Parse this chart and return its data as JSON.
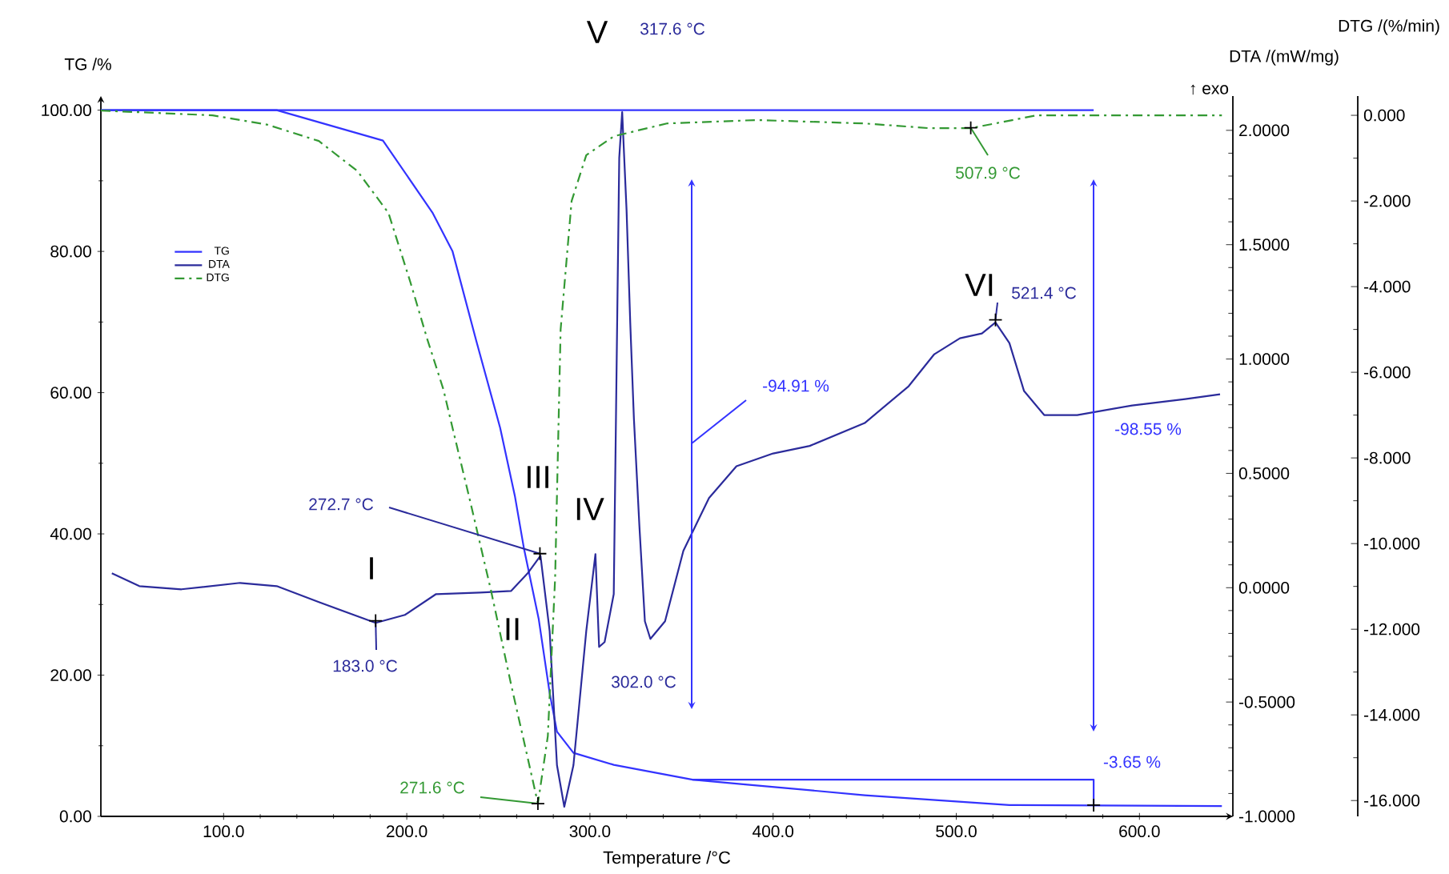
{
  "chart_data": {
    "type": "line",
    "xlabel": "Temperature /°C",
    "ylabel": "TG /%",
    "y2label": "DTA /(mW/mg)",
    "y3label": "DTG /(%/min)",
    "xlim": [
      33,
      651
    ],
    "ylim": [
      0,
      102
    ],
    "y2lim": [
      -1.0,
      2.15
    ],
    "y3lim": [
      -16.37,
      0.45
    ],
    "xticks": [
      {
        "value": 100,
        "label": "100.0"
      },
      {
        "value": 200,
        "label": "200.0"
      },
      {
        "value": 300,
        "label": "300.0"
      },
      {
        "value": 400,
        "label": "400.0"
      },
      {
        "value": 500,
        "label": "500.0"
      },
      {
        "value": 600,
        "label": "600.0"
      }
    ],
    "yticks": [
      {
        "value": 0,
        "label": "0.00"
      },
      {
        "value": 20,
        "label": "20.00"
      },
      {
        "value": 40,
        "label": "40.00"
      },
      {
        "value": 60,
        "label": "60.00"
      },
      {
        "value": 80,
        "label": "80.00"
      },
      {
        "value": 100,
        "label": "100.00"
      }
    ],
    "y2ticks": [
      {
        "value": -1,
        "label": "-1.0000"
      },
      {
        "value": -0.5,
        "label": "-0.5000"
      },
      {
        "value": 0,
        "label": "0.0000"
      },
      {
        "value": 0.5,
        "label": "0.5000"
      },
      {
        "value": 1,
        "label": "1.0000"
      },
      {
        "value": 1.5,
        "label": "1.5000"
      },
      {
        "value": 2,
        "label": "2.0000"
      }
    ],
    "y3ticks": [
      {
        "value": -16,
        "label": "-16.000"
      },
      {
        "value": -14,
        "label": "-14.000"
      },
      {
        "value": -12,
        "label": "-12.000"
      },
      {
        "value": -10,
        "label": "-10.000"
      },
      {
        "value": -8,
        "label": "-8.000"
      },
      {
        "value": -6,
        "label": "-6.000"
      },
      {
        "value": -4,
        "label": "-4.000"
      },
      {
        "value": -2,
        "label": "-2.000"
      },
      {
        "value": 0,
        "label": "0.000"
      }
    ],
    "legend": "top left",
    "series": [
      {
        "name": "TG",
        "color": "#3333ff",
        "line_style": "solid",
        "x": [
          33,
          129,
          187,
          214,
          225,
          238,
          251,
          259,
          264,
          272,
          278,
          282,
          291,
          313,
          356,
          386,
          450,
          529,
          645
        ],
        "values": [
          100,
          100,
          95.7,
          85.5,
          80,
          67.3,
          55,
          45.4,
          37.9,
          28,
          17.5,
          12,
          9,
          7.3,
          5.2,
          4.5,
          3.0,
          1.6,
          1.45
        ]
      },
      {
        "color": "#3333ff",
        "line_style": "solid",
        "x": [
          33,
          575
        ],
        "values": [
          100,
          100
        ]
      },
      {
        "color": "#3333ff",
        "line_style": "solid",
        "x": [
          356,
          575,
          575
        ],
        "values": [
          5.2,
          5.2,
          1.6
        ]
      },
      {
        "name": "DTA",
        "color": "#2b2b9b",
        "line_style": "solid",
        "axis": "y2",
        "x": [
          39,
          54,
          77,
          109,
          129,
          152,
          183,
          199,
          216,
          240,
          257,
          266,
          273,
          278,
          282,
          286,
          291,
          298,
          303,
          305,
          308,
          313,
          316,
          317.6,
          320,
          322,
          324,
          327,
          330,
          333,
          341,
          351,
          365,
          380,
          400,
          420,
          450,
          474,
          488,
          502,
          514,
          521.4,
          529,
          537,
          548,
          566,
          596,
          625,
          644
        ],
        "values": [
          0.063,
          0.007,
          -0.007,
          0.021,
          0.007,
          -0.063,
          -0.154,
          -0.119,
          -0.028,
          -0.021,
          -0.014,
          0.063,
          0.14,
          -0.189,
          -0.776,
          -0.958,
          -0.776,
          -0.189,
          0.147,
          -0.259,
          -0.238,
          -0.028,
          1.88,
          2.08,
          1.65,
          1.16,
          0.74,
          0.27,
          -0.147,
          -0.224,
          -0.147,
          0.161,
          0.392,
          0.531,
          0.587,
          0.62,
          0.72,
          0.881,
          1.021,
          1.091,
          1.112,
          1.16,
          1.07,
          0.86,
          0.755,
          0.755,
          0.797,
          0.825,
          0.846
        ]
      },
      {
        "name": "DTG",
        "color": "#339933",
        "line_style": "dashed",
        "axis": "y3",
        "x": [
          33,
          94,
          124,
          152,
          173,
          190,
          202,
          211,
          220,
          225,
          234,
          246,
          257,
          266,
          271.6,
          277,
          281,
          284,
          290,
          298,
          313,
          342,
          391,
          450,
          485,
          507.9,
          544,
          596,
          645
        ],
        "values": [
          0.11,
          0,
          -0.22,
          -0.6,
          -1.3,
          -2.28,
          -3.9,
          -5.2,
          -6.4,
          -7.3,
          -8.9,
          -11.1,
          -13.3,
          -15.0,
          -16.07,
          -14.5,
          -10.8,
          -5.0,
          -2.0,
          -0.93,
          -0.49,
          -0.19,
          -0.11,
          -0.19,
          -0.3,
          -0.3,
          0,
          0,
          0
        ]
      }
    ],
    "annotations": [
      "I",
      "II",
      "III",
      "IV",
      "V",
      "VI",
      {
        "text": "183.0 °C",
        "x": 183,
        "y": 27.7
      },
      {
        "text": "272.7 °C",
        "x": 272.7,
        "y": 37.2
      },
      "302.0 °C",
      "317.6 °C",
      {
        "text": "521.4 °C",
        "x": 521.4,
        "y": 70.3
      },
      {
        "text": "271.6 °C",
        "x": 271.6,
        "y": 1.8
      },
      {
        "text": "507.9 °C",
        "x": 507.9,
        "y": 97.5
      },
      "-94.91 %",
      "-98.55 %",
      {
        "text": "-3.65 %",
        "x": 575,
        "y": 1.6
      },
      "↑ exo"
    ]
  }
}
